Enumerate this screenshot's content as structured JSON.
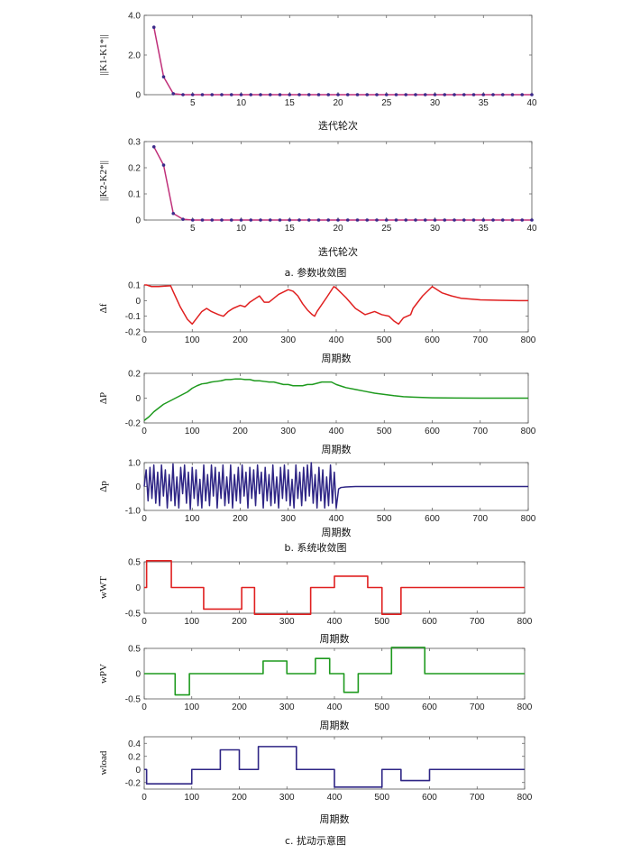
{
  "sections": [
    {
      "caption": "a. 参数收敛图"
    },
    {
      "caption": "b. 系统收敛图"
    },
    {
      "caption": "c. 扰动示意图"
    }
  ],
  "chart_data": [
    {
      "id": "k1",
      "type": "line",
      "xlabel": "迭代轮次",
      "ylabel": "||K1-K1*||",
      "xlim": [
        0,
        40
      ],
      "ylim": [
        0,
        4
      ],
      "xticks": [
        5,
        10,
        15,
        20,
        25,
        30,
        35,
        40
      ],
      "yticks": [
        {
          "v": 0,
          "label": "0"
        },
        {
          "v": 2,
          "label": "2.0"
        },
        {
          "v": 4,
          "label": "4.0"
        }
      ],
      "markers": true,
      "color": "#c0307a",
      "marker_color": "#3c2a8a",
      "x": [
        1,
        2,
        3,
        4,
        5,
        6,
        7,
        8,
        9,
        10,
        11,
        12,
        13,
        14,
        15,
        16,
        17,
        18,
        19,
        20,
        21,
        22,
        23,
        24,
        25,
        26,
        27,
        28,
        29,
        30,
        31,
        32,
        33,
        34,
        35,
        36,
        37,
        38,
        39,
        40
      ],
      "y": [
        3.4,
        0.9,
        0.05,
        0,
        0,
        0,
        0,
        0,
        0,
        0,
        0,
        0,
        0,
        0,
        0,
        0,
        0,
        0,
        0,
        0,
        0,
        0,
        0,
        0,
        0,
        0,
        0,
        0,
        0,
        0,
        0,
        0,
        0,
        0,
        0,
        0,
        0,
        0,
        0,
        0
      ]
    },
    {
      "id": "k2",
      "type": "line",
      "xlabel": "迭代轮次",
      "ylabel": "||K2-K2*||",
      "xlim": [
        0,
        40
      ],
      "ylim": [
        0,
        0.3
      ],
      "xticks": [
        5,
        10,
        15,
        20,
        25,
        30,
        35,
        40
      ],
      "yticks": [
        {
          "v": 0,
          "label": "0"
        },
        {
          "v": 0.1,
          "label": "0.1"
        },
        {
          "v": 0.2,
          "label": "0.2"
        },
        {
          "v": 0.3,
          "label": "0.3"
        }
      ],
      "markers": true,
      "color": "#c0307a",
      "marker_color": "#3c2a8a",
      "x": [
        1,
        2,
        3,
        4,
        5,
        6,
        7,
        8,
        9,
        10,
        11,
        12,
        13,
        14,
        15,
        16,
        17,
        18,
        19,
        20,
        21,
        22,
        23,
        24,
        25,
        26,
        27,
        28,
        29,
        30,
        31,
        32,
        33,
        34,
        35,
        36,
        37,
        38,
        39,
        40
      ],
      "y": [
        0.28,
        0.21,
        0.025,
        0.003,
        0,
        0,
        0,
        0,
        0,
        0,
        0,
        0,
        0,
        0,
        0,
        0,
        0,
        0,
        0,
        0,
        0,
        0,
        0,
        0,
        0,
        0,
        0,
        0,
        0,
        0,
        0,
        0,
        0,
        0,
        0,
        0,
        0,
        0,
        0,
        0
      ]
    },
    {
      "id": "df",
      "type": "line",
      "xlabel": "周期数",
      "ylabel": "Δf",
      "xlim": [
        0,
        800
      ],
      "ylim": [
        -0.2,
        0.1
      ],
      "xticks": [
        0,
        100,
        200,
        300,
        400,
        500,
        600,
        700,
        800
      ],
      "yticks": [
        {
          "v": 0.1,
          "label": "0.1"
        },
        {
          "v": 0,
          "label": "0"
        },
        {
          "v": -0.1,
          "label": "-0.1"
        },
        {
          "v": -0.2,
          "label": "-0.2"
        }
      ],
      "color": "#e02020",
      "x": [
        0,
        5,
        15,
        30,
        55,
        60,
        75,
        90,
        100,
        110,
        120,
        130,
        140,
        155,
        165,
        175,
        185,
        200,
        210,
        220,
        230,
        240,
        250,
        260,
        280,
        300,
        310,
        320,
        330,
        340,
        350,
        355,
        360,
        380,
        395,
        400,
        420,
        440,
        460,
        480,
        495,
        510,
        520,
        530,
        540,
        555,
        560,
        580,
        600,
        620,
        640,
        660,
        680,
        700,
        740,
        780,
        800
      ],
      "y": [
        0.1,
        0.1,
        0.09,
        0.09,
        0.095,
        0.06,
        -0.04,
        -0.12,
        -0.15,
        -0.11,
        -0.07,
        -0.05,
        -0.07,
        -0.09,
        -0.1,
        -0.07,
        -0.05,
        -0.03,
        -0.04,
        -0.01,
        0.01,
        0.03,
        -0.01,
        -0.01,
        0.04,
        0.07,
        0.06,
        0.03,
        -0.02,
        -0.06,
        -0.09,
        -0.1,
        -0.07,
        0.02,
        0.09,
        0.08,
        0.02,
        -0.05,
        -0.09,
        -0.07,
        -0.09,
        -0.1,
        -0.13,
        -0.15,
        -0.11,
        -0.09,
        -0.05,
        0.03,
        0.09,
        0.05,
        0.03,
        0.015,
        0.01,
        0.005,
        0.002,
        0,
        0
      ]
    },
    {
      "id": "dP",
      "type": "line",
      "xlabel": "周期数",
      "ylabel": "ΔP",
      "xlim": [
        0,
        800
      ],
      "ylim": [
        -0.2,
        0.2
      ],
      "xticks": [
        0,
        100,
        200,
        300,
        400,
        500,
        600,
        700,
        800
      ],
      "yticks": [
        {
          "v": 0.2,
          "label": "0.2"
        },
        {
          "v": 0,
          "label": "0"
        },
        {
          "v": -0.2,
          "label": "-0.2"
        }
      ],
      "color": "#1e9a1e",
      "x": [
        0,
        10,
        20,
        30,
        40,
        50,
        60,
        70,
        80,
        90,
        100,
        110,
        120,
        130,
        140,
        150,
        160,
        170,
        180,
        190,
        200,
        210,
        220,
        230,
        240,
        250,
        260,
        270,
        280,
        290,
        300,
        310,
        320,
        330,
        340,
        350,
        360,
        370,
        380,
        390,
        400,
        420,
        440,
        460,
        480,
        500,
        520,
        540,
        560,
        580,
        600,
        650,
        700,
        750,
        800
      ],
      "y": [
        -0.18,
        -0.15,
        -0.11,
        -0.08,
        -0.05,
        -0.03,
        -0.01,
        0.01,
        0.03,
        0.05,
        0.08,
        0.1,
        0.115,
        0.12,
        0.13,
        0.135,
        0.14,
        0.15,
        0.15,
        0.155,
        0.155,
        0.15,
        0.15,
        0.14,
        0.14,
        0.135,
        0.13,
        0.13,
        0.12,
        0.11,
        0.11,
        0.1,
        0.1,
        0.1,
        0.11,
        0.11,
        0.12,
        0.13,
        0.13,
        0.13,
        0.11,
        0.085,
        0.07,
        0.055,
        0.04,
        0.03,
        0.02,
        0.012,
        0.008,
        0.005,
        0.003,
        0.001,
        0,
        0,
        0
      ]
    },
    {
      "id": "dp",
      "type": "line",
      "xlabel": "周期数",
      "ylabel": "Δp",
      "xlim": [
        0,
        800
      ],
      "ylim": [
        -1,
        1
      ],
      "xticks": [
        0,
        100,
        200,
        300,
        400,
        500,
        600,
        700,
        800
      ],
      "yticks": [
        {
          "v": 1,
          "label": "1.0"
        },
        {
          "v": 0,
          "label": "0"
        },
        {
          "v": -1,
          "label": "-1.0"
        }
      ],
      "color": "#2e2585",
      "x": [
        0,
        4,
        8,
        12,
        16,
        20,
        24,
        28,
        32,
        36,
        40,
        44,
        48,
        52,
        56,
        60,
        64,
        68,
        72,
        76,
        80,
        84,
        88,
        92,
        96,
        100,
        104,
        108,
        112,
        116,
        120,
        124,
        128,
        132,
        136,
        140,
        144,
        148,
        152,
        156,
        160,
        164,
        168,
        172,
        176,
        180,
        184,
        188,
        192,
        196,
        200,
        204,
        208,
        212,
        216,
        220,
        224,
        228,
        232,
        236,
        240,
        244,
        248,
        252,
        256,
        260,
        264,
        268,
        272,
        276,
        280,
        284,
        288,
        292,
        296,
        300,
        304,
        308,
        312,
        316,
        320,
        324,
        328,
        332,
        336,
        340,
        344,
        348,
        352,
        356,
        360,
        364,
        368,
        372,
        376,
        380,
        384,
        388,
        392,
        396,
        400,
        405,
        410,
        420,
        440,
        500,
        600,
        700,
        800
      ],
      "y": [
        0,
        0.7,
        -0.6,
        0.8,
        -0.5,
        0.9,
        -0.7,
        0.6,
        -0.8,
        0.9,
        -0.4,
        0.7,
        -0.9,
        0.5,
        -0.6,
        0.95,
        -0.8,
        0.4,
        -0.9,
        0.8,
        -0.3,
        0.9,
        -0.7,
        0.6,
        -0.95,
        0.8,
        -0.5,
        0.7,
        -0.8,
        0.3,
        -0.9,
        0.9,
        -0.6,
        0.5,
        -0.8,
        0.9,
        -0.4,
        0.8,
        -0.9,
        0.6,
        -0.5,
        0.9,
        -0.8,
        0.4,
        -0.7,
        0.9,
        -0.9,
        0.5,
        -0.6,
        0.8,
        -0.7,
        0.9,
        -0.4,
        0.6,
        -0.9,
        0.8,
        -0.5,
        0.7,
        -0.8,
        0.9,
        -0.3,
        0.6,
        -0.9,
        0.8,
        -0.6,
        0.5,
        -0.8,
        0.9,
        -0.7,
        0.4,
        -0.9,
        0.8,
        -0.5,
        0.9,
        -0.6,
        0.7,
        -0.8,
        0.3,
        -0.9,
        0.9,
        -0.5,
        0.6,
        -0.8,
        0.8,
        -0.6,
        0.9,
        -0.4,
        1.0,
        -0.7,
        0.5,
        -0.9,
        0.8,
        -0.6,
        0.7,
        -0.9,
        0.4,
        -0.8,
        0.9,
        -0.7,
        0.6,
        -0.9,
        -0.1,
        -0.04,
        -0.02,
        0,
        0,
        0,
        0,
        0
      ]
    },
    {
      "id": "wwt",
      "type": "step",
      "xlabel": "周期数",
      "ylabel": "wWT",
      "xlim": [
        0,
        800
      ],
      "ylim": [
        -0.5,
        0.5
      ],
      "xticks": [
        0,
        100,
        200,
        300,
        400,
        500,
        600,
        700,
        800
      ],
      "yticks": [
        {
          "v": 0.5,
          "label": "0.5"
        },
        {
          "v": 0,
          "label": "0"
        },
        {
          "v": -0.5,
          "label": "-0.5"
        }
      ],
      "color": "#e02020",
      "x": [
        0,
        5,
        5,
        57,
        57,
        125,
        125,
        205,
        205,
        232,
        232,
        350,
        350,
        400,
        400,
        470,
        470,
        500,
        500,
        540,
        540,
        800
      ],
      "y": [
        0,
        0,
        0.52,
        0.52,
        0,
        0,
        -0.42,
        -0.42,
        0,
        0,
        -0.52,
        -0.52,
        0,
        0,
        0.22,
        0.22,
        0,
        0,
        -0.52,
        -0.52,
        0,
        0
      ]
    },
    {
      "id": "wpv",
      "type": "step",
      "xlabel": "周期数",
      "ylabel": "wPV",
      "xlim": [
        0,
        800
      ],
      "ylim": [
        -0.5,
        0.5
      ],
      "xticks": [
        0,
        100,
        200,
        300,
        400,
        500,
        600,
        700,
        800
      ],
      "yticks": [
        {
          "v": 0.5,
          "label": "0.5"
        },
        {
          "v": 0,
          "label": "0"
        },
        {
          "v": -0.5,
          "label": "-0.5"
        }
      ],
      "color": "#1e9a1e",
      "x": [
        0,
        65,
        65,
        95,
        95,
        250,
        250,
        300,
        300,
        360,
        360,
        390,
        390,
        420,
        420,
        450,
        450,
        520,
        520,
        590,
        590,
        800
      ],
      "y": [
        0,
        0,
        -0.42,
        -0.42,
        0,
        0,
        0.25,
        0.25,
        0,
        0,
        0.3,
        0.3,
        0,
        0,
        -0.37,
        -0.37,
        0,
        0,
        0.52,
        0.52,
        0,
        0
      ]
    },
    {
      "id": "wload",
      "type": "step",
      "xlabel": "周期数",
      "ylabel": "wload",
      "xlim": [
        0,
        800
      ],
      "ylim": [
        -0.3,
        0.5
      ],
      "xticks": [
        0,
        100,
        200,
        300,
        400,
        500,
        600,
        700,
        800
      ],
      "yticks": [
        {
          "v": 0.4,
          "label": "0.4"
        },
        {
          "v": 0.2,
          "label": "0.2"
        },
        {
          "v": 0,
          "label": "0"
        },
        {
          "v": -0.2,
          "label": "-0.2"
        }
      ],
      "color": "#2e2585",
      "x": [
        0,
        5,
        5,
        100,
        100,
        160,
        160,
        200,
        200,
        240,
        240,
        320,
        320,
        400,
        400,
        500,
        500,
        540,
        540,
        600,
        600,
        800
      ],
      "y": [
        0,
        0,
        -0.22,
        -0.22,
        0,
        0,
        0.3,
        0.3,
        0,
        0,
        0.35,
        0.35,
        0,
        0,
        -0.27,
        -0.27,
        0,
        0,
        -0.17,
        -0.17,
        0,
        0
      ]
    }
  ]
}
